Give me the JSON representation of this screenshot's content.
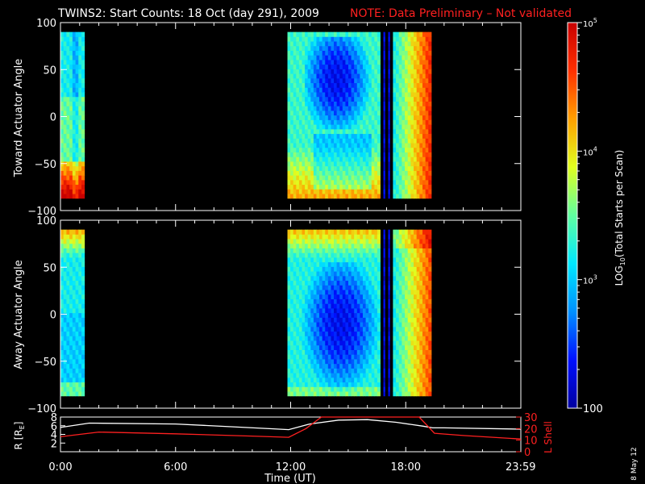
{
  "header": {
    "title": "TWINS2: Start Counts: 18 Oct (day 291), 2009",
    "note": "NOTE: Data Preliminary – Not validated"
  },
  "colors": {
    "background": "#000000",
    "note": "#ff2020",
    "axes": "#ffffff",
    "lshell": "#ff2020",
    "colorscale": [
      "#0000a0",
      "#0010ff",
      "#0090ff",
      "#00e8ff",
      "#60ffa0",
      "#e0ff20",
      "#ffa000",
      "#ff3000",
      "#c80000"
    ]
  },
  "colorbar": {
    "label_prefix": "LOG",
    "label_sub": "10",
    "label_suffix": "(Total Starts per Scan)",
    "ticks": [
      {
        "value": 100,
        "label": "100"
      },
      {
        "value": 1000,
        "label": "10",
        "exp": "3"
      },
      {
        "value": 10000,
        "label": "10",
        "exp": "4"
      },
      {
        "value": 100000,
        "label": "10",
        "exp": "5"
      }
    ]
  },
  "side_date": "8 May 12",
  "chart_data": [
    {
      "type": "heatmap",
      "name": "toward",
      "ylabel": "Toward Actuator Angle",
      "xlim": [
        "0:00",
        "23:59"
      ],
      "ylim": [
        -100,
        100
      ],
      "yticks": [
        "100",
        "50",
        "0",
        "−50",
        "−100"
      ],
      "zscale": "log",
      "zrange": [
        100,
        100000
      ],
      "coverage": [
        {
          "start": "0:00",
          "end": "1:15"
        },
        {
          "start": "11:50",
          "end": "16:40"
        },
        {
          "start": "16:50",
          "end": "16:55"
        },
        {
          "start": "17:05",
          "end": "17:10"
        },
        {
          "start": "17:20",
          "end": "19:20"
        }
      ],
      "angle_range": [
        -87,
        90
      ]
    },
    {
      "type": "heatmap",
      "name": "away",
      "ylabel": "Away Actuator Angle",
      "xlim": [
        "0:00",
        "23:59"
      ],
      "ylim": [
        -100,
        100
      ],
      "yticks": [
        "100",
        "50",
        "0",
        "−50",
        "−100"
      ],
      "zscale": "log",
      "zrange": [
        100,
        100000
      ],
      "coverage": [
        {
          "start": "0:00",
          "end": "1:15"
        },
        {
          "start": "11:50",
          "end": "16:40"
        },
        {
          "start": "16:50",
          "end": "16:55"
        },
        {
          "start": "17:05",
          "end": "17:10"
        },
        {
          "start": "17:20",
          "end": "19:20"
        }
      ],
      "angle_range": [
        -87,
        90
      ]
    },
    {
      "type": "line",
      "name": "ephemeris",
      "xlabel": "Time (UT)",
      "xticks": [
        "0:00",
        "6:00",
        "12:00",
        "18:00",
        "23:59"
      ],
      "left_axis": {
        "label": "R [R",
        "label_sub": "E",
        "label_end": "]",
        "ylim": [
          0,
          8
        ],
        "ticks": [
          "8",
          "6",
          "4",
          "2"
        ]
      },
      "right_axis": {
        "label": "L Shell",
        "ylim": [
          0,
          30
        ],
        "ticks": [
          "30",
          "20",
          "10",
          "0"
        ]
      },
      "series": [
        {
          "name": "R",
          "color": "#ffffff",
          "points": [
            [
              0,
              5.6
            ],
            [
              1.5,
              6.6
            ],
            [
              6,
              6.4
            ],
            [
              11,
              5.3
            ],
            [
              11.9,
              5.1
            ],
            [
              13,
              6.4
            ],
            [
              14.5,
              7.3
            ],
            [
              16,
              7.4
            ],
            [
              17.5,
              6.8
            ],
            [
              18.9,
              5.9
            ],
            [
              19.4,
              5.5
            ],
            [
              20,
              5.5
            ],
            [
              23.99,
              5.2
            ]
          ]
        },
        {
          "name": "L Shell",
          "color": "#ff2020",
          "points": [
            [
              0,
              13
            ],
            [
              2,
              17
            ],
            [
              6,
              15.5
            ],
            [
              10,
              13.5
            ],
            [
              11.9,
              12.5
            ],
            [
              12.8,
              20
            ],
            [
              13.6,
              30
            ],
            [
              18.7,
              30
            ],
            [
              19.5,
              16
            ],
            [
              21,
              14
            ],
            [
              23.99,
              11
            ]
          ]
        }
      ]
    }
  ]
}
